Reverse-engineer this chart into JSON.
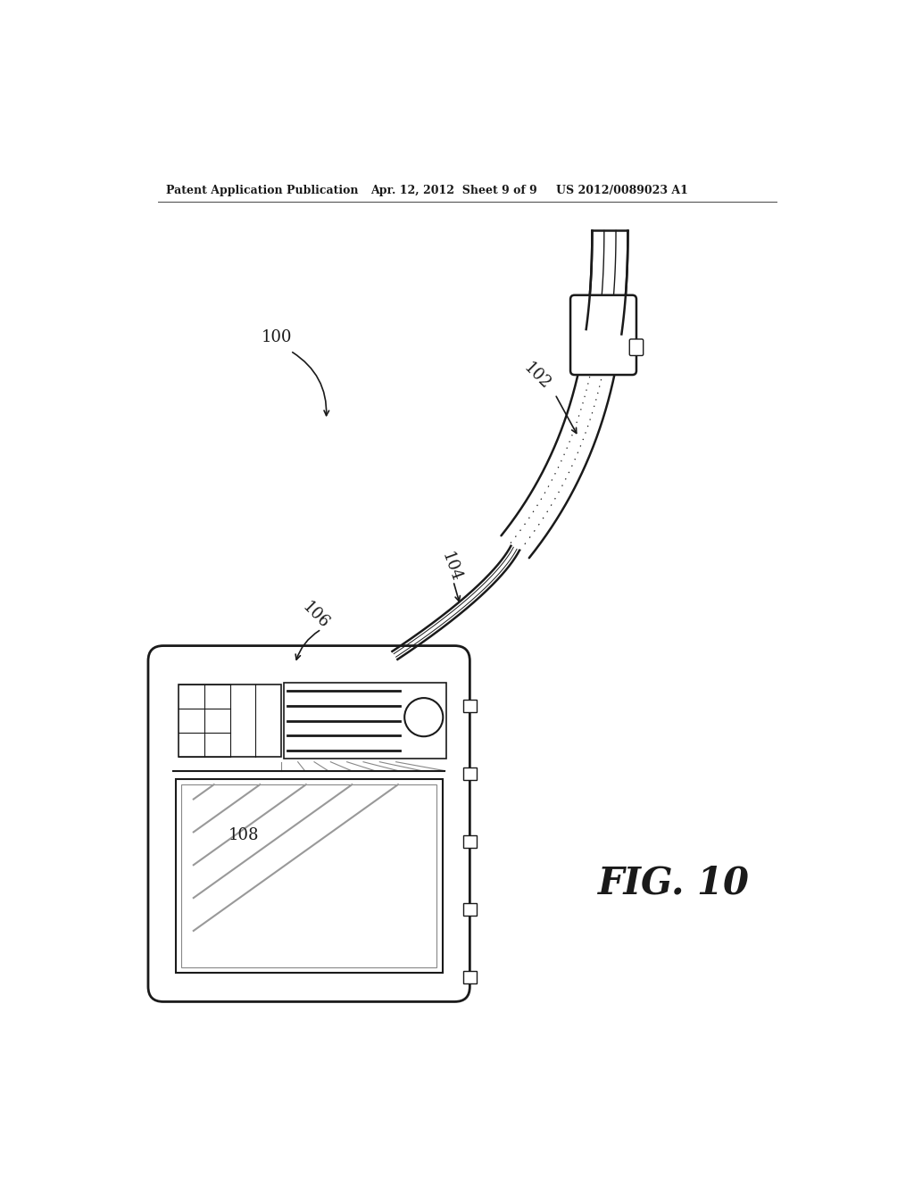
{
  "background_color": "#ffffff",
  "header_left": "Patent Application Publication",
  "header_center": "Apr. 12, 2012  Sheet 9 of 9",
  "header_right": "US 2012/0089023 A1",
  "fig_label": "FIG. 10",
  "label_100": "100",
  "label_102": "102",
  "label_104": "104",
  "label_106": "106",
  "label_108": "108",
  "line_color": "#1a1a1a",
  "header_fontsize": 9,
  "label_fontsize": 13
}
